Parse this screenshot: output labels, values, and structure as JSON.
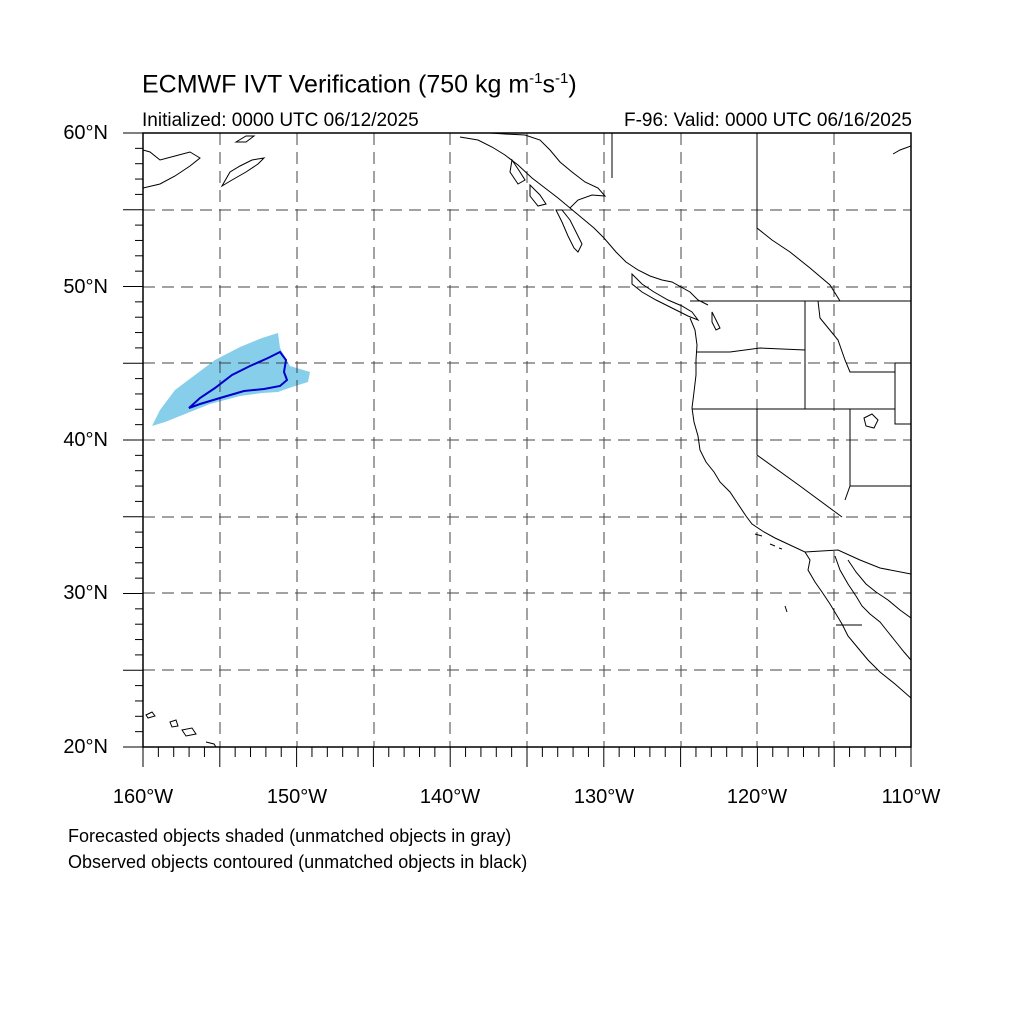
{
  "title": {
    "prefix": "ECMWF IVT Verification (750 kg m",
    "exp1": "-1",
    "mid": "s",
    "exp2": "-1",
    "suffix": ")"
  },
  "initialized": "Initialized: 0000 UTC 06/12/2025",
  "valid": "F-96: Valid: 0000 UTC 06/16/2025",
  "lat_labels": [
    "60°N",
    "50°N",
    "40°N",
    "30°N",
    "20°N"
  ],
  "lon_labels": [
    "160°W",
    "150°W",
    "140°W",
    "130°W",
    "120°W",
    "110°W"
  ],
  "footer": {
    "line1": "Forecasted objects shaded (unmatched objects in gray)",
    "line2": "Observed objects contoured (unmatched objects in black)"
  },
  "map": {
    "lon_range": [
      -160,
      -110
    ],
    "lat_range": [
      20,
      60
    ],
    "grid_spacing_deg": 5,
    "forecast_fill_color": "#87CEEB",
    "observed_contour_color": "#0000CC",
    "grid_style": "dashed"
  }
}
